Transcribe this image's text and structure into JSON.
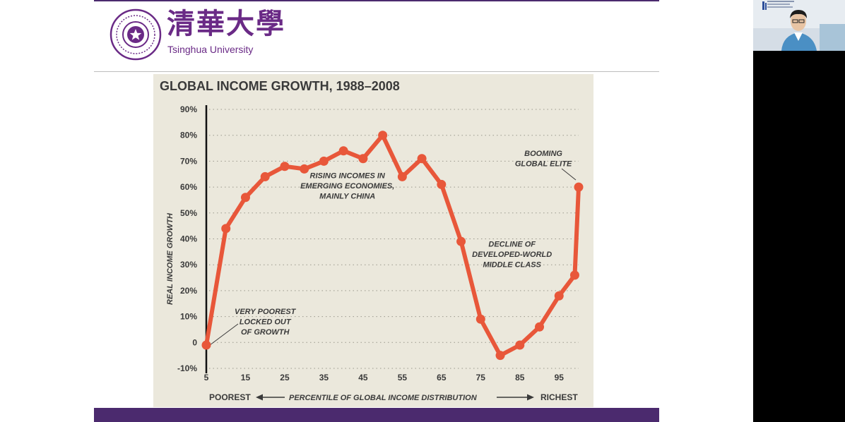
{
  "header": {
    "logo_cn": "清華大學",
    "logo_en": "Tsinghua University"
  },
  "chart_data": {
    "type": "line",
    "title": "GLOBAL INCOME GROWTH, 1988–2008",
    "xlabel": "PERCENTILE OF GLOBAL INCOME DISTRIBUTION",
    "ylabel": "REAL INCOME GROWTH",
    "x_end_left": "POOREST",
    "x_end_right": "RICHEST",
    "x_ticks": [
      "5",
      "15",
      "25",
      "35",
      "45",
      "55",
      "65",
      "75",
      "85",
      "95"
    ],
    "y_ticks": [
      "-10%",
      "0",
      "10%",
      "20%",
      "30%",
      "40%",
      "50%",
      "60%",
      "70%",
      "80%",
      "90%"
    ],
    "xlim": [
      5,
      100
    ],
    "ylim": [
      -10,
      90
    ],
    "grid": true,
    "series": [
      {
        "x": [
          5,
          10,
          15,
          20,
          25,
          30,
          35,
          40,
          45,
          50,
          55,
          60,
          65,
          70,
          75,
          80,
          85,
          90,
          95,
          99,
          100
        ],
        "values": [
          -1,
          44,
          56,
          64,
          68,
          67,
          70,
          74,
          71,
          80,
          64,
          71,
          61,
          39,
          9,
          -5,
          -1,
          6,
          18,
          26,
          60
        ]
      }
    ],
    "annotations": [
      {
        "lines": [
          "RISING INCOMES IN",
          "EMERGING ECONOMIES,",
          "MAINLY CHINA"
        ],
        "x": 41,
        "y": 63.5
      },
      {
        "lines": [
          "BOOMING",
          "GLOBAL ELITE"
        ],
        "x": 91,
        "y": 72
      },
      {
        "lines": [
          "DECLINE OF",
          "DEVELOPED-WORLD",
          "MIDDLE CLASS"
        ],
        "x": 83,
        "y": 37
      },
      {
        "lines": [
          "VERY POOREST",
          "LOCKED OUT",
          "OF GROWTH"
        ],
        "x": 20,
        "y": 11
      }
    ],
    "colors": {
      "line": "#e8573a",
      "background": "#ebe8dc",
      "text": "#3a3a3a"
    }
  },
  "colors": {
    "brand_purple": "#6a2a86",
    "bar": "#4b2a6e"
  }
}
